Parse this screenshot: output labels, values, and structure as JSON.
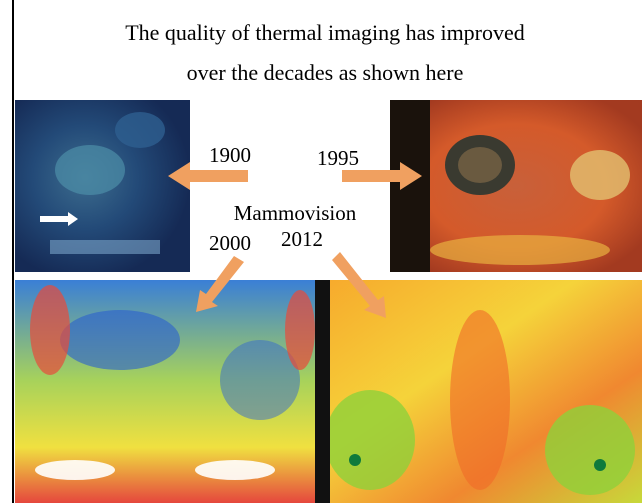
{
  "caption": {
    "lines": [
      "The quality of thermal imaging has improved",
      "over the decades as shown here"
    ]
  },
  "labels": {
    "year_1900": "1900",
    "year_1995": "1995",
    "device": "Mammovision",
    "year_2000": "2000",
    "year_2012": "2012"
  }
}
